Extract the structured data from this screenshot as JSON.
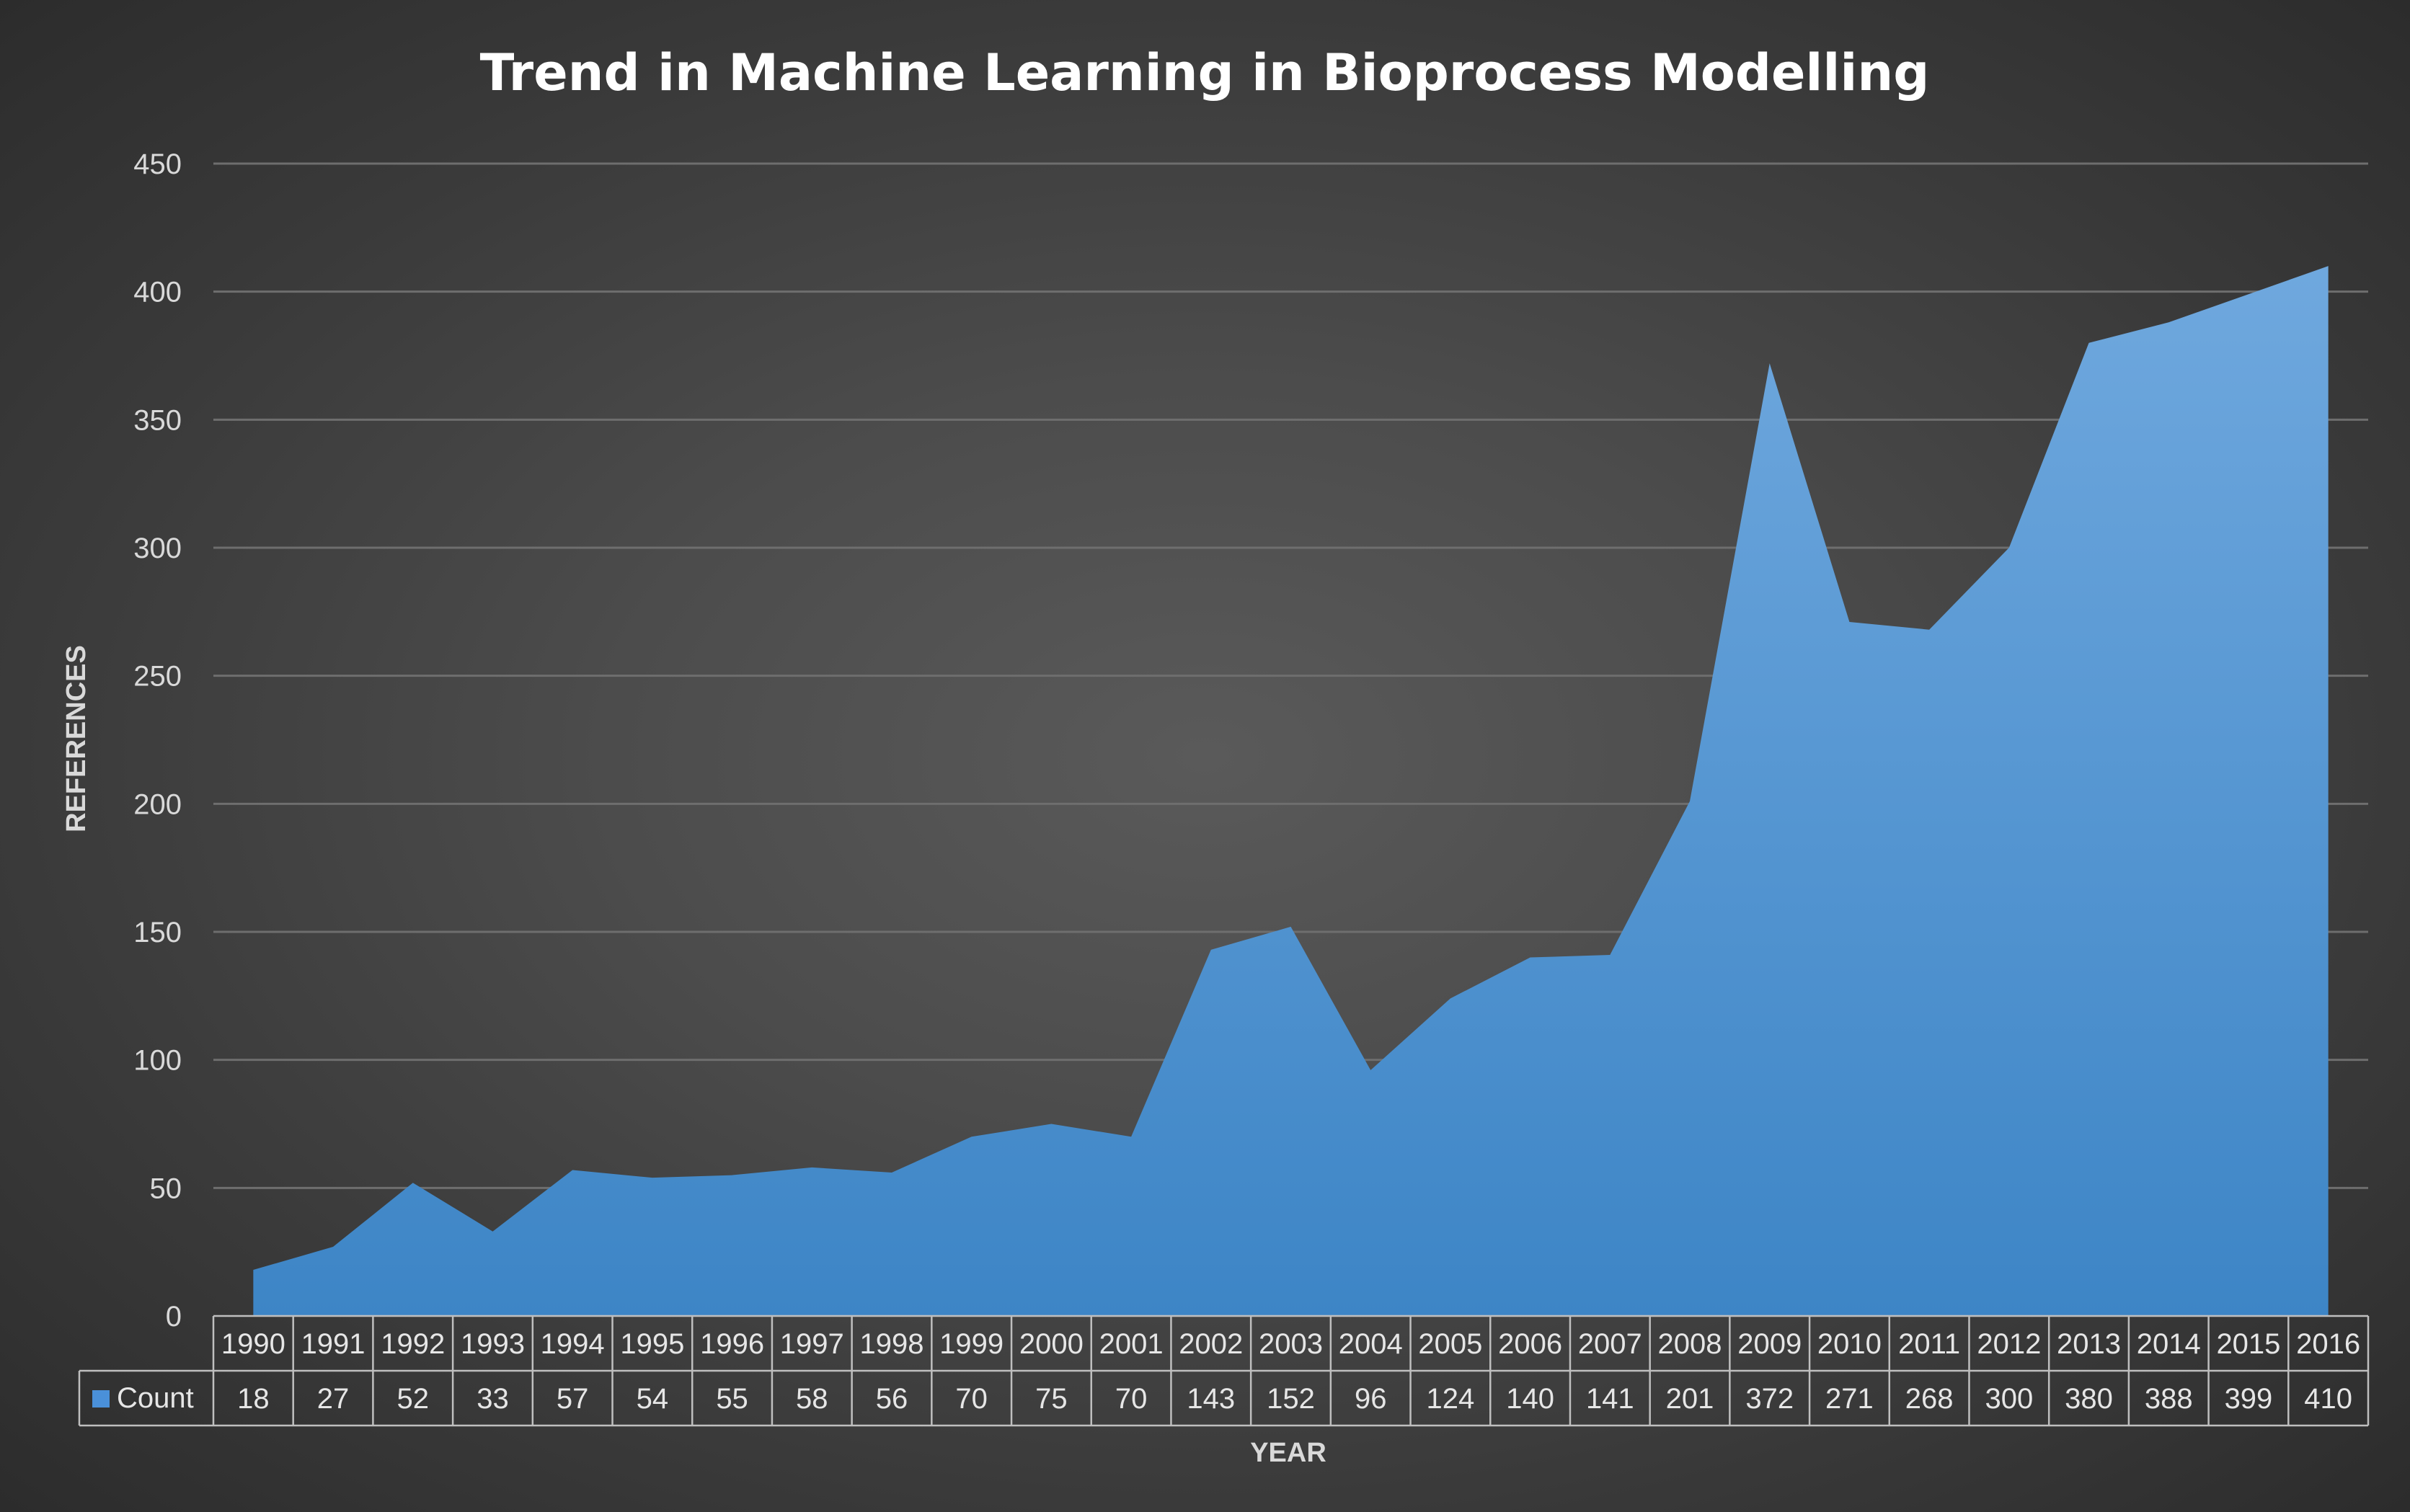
{
  "chart_data": {
    "type": "area",
    "title": "Trend in Machine Learning in Bioprocess Modelling",
    "xlabel": "YEAR",
    "ylabel": "REFERENCES",
    "ylim": [
      0,
      450
    ],
    "yticks": [
      0,
      50,
      100,
      150,
      200,
      250,
      300,
      350,
      400,
      450
    ],
    "grid": true,
    "data_table": true,
    "categories": [
      "1990",
      "1991",
      "1992",
      "1993",
      "1994",
      "1995",
      "1996",
      "1997",
      "1998",
      "1999",
      "2000",
      "2001",
      "2002",
      "2003",
      "2004",
      "2005",
      "2006",
      "2007",
      "2008",
      "2009",
      "2010",
      "2011",
      "2012",
      "2013",
      "2014",
      "2015",
      "2016"
    ],
    "series": [
      {
        "name": "Count",
        "color": "#4a90d9",
        "values": [
          18,
          27,
          52,
          33,
          57,
          54,
          55,
          58,
          56,
          70,
          75,
          70,
          143,
          152,
          96,
          124,
          140,
          141,
          201,
          372,
          271,
          268,
          300,
          380,
          388,
          399,
          410
        ]
      }
    ]
  }
}
